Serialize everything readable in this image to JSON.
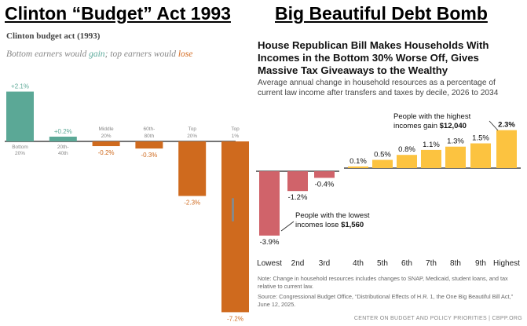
{
  "titles": {
    "left": "Clinton “Budget” Act 1993",
    "right": "Big Beautiful Debt Bomb"
  },
  "left_panel": {
    "heading": "Clinton budget act (1993)",
    "subtitle_part1": "Bottom earners would ",
    "subtitle_gain": "gain",
    "subtitle_part2": "; top earners would ",
    "subtitle_lose": "lose"
  },
  "right_panel": {
    "heading": "House Republican Bill Makes Households With Incomes in the Bottom 30% Worse Off, Gives Massive Tax Giveaways to the Wealthy",
    "subheading": "Average annual change in household resources as a percentage of current law income after transfers and taxes by decile, 2026 to 2034",
    "callout_high_line1": "People with the highest",
    "callout_high_line2_prefix": "incomes gain ",
    "callout_high_amount": "$12,040",
    "callout_low_line1": "People with the lowest",
    "callout_low_line2_prefix": "incomes lose ",
    "callout_low_amount": "$1,560",
    "note": "Note: Change in household resources includes changes to SNAP, Medicaid, student loans, and tax relative to current law.",
    "source": "Source: Congressional Budget Office, “Distributional Effects of H.R. 1, the One Big Beautiful Bill Act,” June 12, 2025.",
    "footer": "CENTER ON BUDGET AND POLICY PRIORITIES | CBPP.ORG"
  },
  "chart_data": [
    {
      "type": "bar",
      "title": "Clinton budget act (1993)",
      "categories": [
        [
          "Bottom",
          "20%"
        ],
        [
          "20th-",
          "40th"
        ],
        [
          "Middle",
          "20%"
        ],
        [
          "60th-",
          "80th"
        ],
        [
          "Top",
          "20%"
        ],
        [
          "Top",
          "1%"
        ]
      ],
      "values": [
        2.1,
        0.2,
        -0.2,
        -0.3,
        -2.3,
        -7.2
      ],
      "value_labels": [
        "+2.1%",
        "+0.2%",
        "-0.2%",
        "-0.3%",
        "-2.3%",
        "-7.2%"
      ],
      "colors": [
        "#5ba896",
        "#5ba896",
        "#cf6a1e",
        "#cf6a1e",
        "#cf6a1e",
        "#cf6a1e"
      ],
      "label_colors": [
        "#5ba896",
        "#5ba896",
        "#cf6a1e",
        "#cf6a1e",
        "#cf6a1e",
        "#cf6a1e"
      ],
      "ylim": [
        -7.2,
        2.1
      ],
      "grid": false
    },
    {
      "type": "bar",
      "title": "House Republican Bill Makes Households With Incomes in the Bottom 30% Worse Off, Gives Massive Tax Giveaways to the Wealthy",
      "categories": [
        "Lowest",
        "2nd",
        "3rd",
        "4th",
        "5th",
        "6th",
        "7th",
        "8th",
        "9th",
        "Highest"
      ],
      "values": [
        -3.9,
        -1.2,
        -0.4,
        0.1,
        0.5,
        0.8,
        1.1,
        1.3,
        1.5,
        2.3
      ],
      "value_labels": [
        "-3.9%",
        "-1.2%",
        "-0.4%",
        "0.1%",
        "0.5%",
        "0.8%",
        "1.1%",
        "1.3%",
        "1.5%",
        "2.3%"
      ],
      "colors": [
        "#d0636a",
        "#d0636a",
        "#d0636a",
        "#fcc340",
        "#fcc340",
        "#fcc340",
        "#fcc340",
        "#fcc340",
        "#fcc340",
        "#fcc340"
      ],
      "ylim": [
        -3.9,
        2.3
      ],
      "grid": false
    }
  ]
}
